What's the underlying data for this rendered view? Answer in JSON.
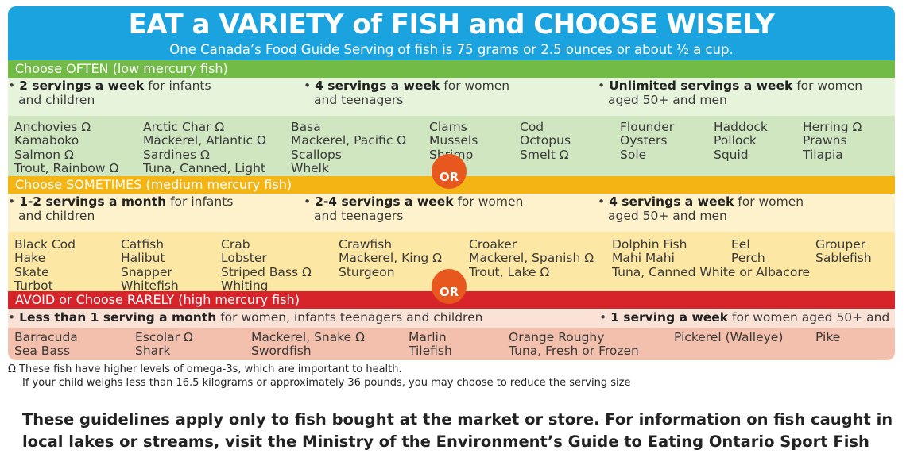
{
  "title": "EAT a VARIETY of FISH and CHOOSE WISELY",
  "subtitle": "One Canada’s Food Guide Serving of fish is 75 grams or 2.5 ounces or about ½ a cup.",
  "often": {
    "band": "Choose OFTEN  (low mercury fish)",
    "s1_b": "2 servings a week",
    "s1_r": " for infants",
    "s1_l2": "and children",
    "s2_b": "4 servings a week",
    "s2_r": " for women",
    "s2_l2": "and teenagers",
    "s3_b": "Unlimited servings a week",
    "s3_r": " for women",
    "s3_l2": "aged 50+ and men",
    "cols": [
      [
        "Anchovies Ω",
        "Kamaboko",
        "Salmon Ω",
        "Trout, Rainbow Ω"
      ],
      [
        "Arctic Char Ω",
        "Mackerel, Atlantic Ω",
        "Sardines Ω",
        "Tuna, Canned, Light"
      ],
      [
        "Basa",
        "Mackerel, Pacific Ω",
        "Scallops",
        "Whelk"
      ],
      [
        "Clams",
        "Mussels",
        "Shrimp"
      ],
      [
        "Cod",
        "Octopus",
        "Smelt Ω"
      ],
      [
        "Flounder",
        "Oysters",
        "Sole"
      ],
      [
        "Haddock",
        "Pollock",
        "Squid"
      ],
      [
        "Herring Ω",
        "Prawns",
        "Tilapia"
      ]
    ]
  },
  "or_label": "OR",
  "sometimes": {
    "band": "Choose SOMETIMES (medium mercury fish)",
    "s1_b": "1-2 servings a month",
    "s1_r": " for infants",
    "s1_l2": "and children",
    "s2_b": "2-4 servings a week",
    "s2_r": " for women",
    "s2_l2": "and teenagers",
    "s3_b": "4 servings a week",
    "s3_r": " for women",
    "s3_l2": "aged 50+ and men",
    "cols": [
      [
        "Black Cod",
        "Hake",
        "Skate",
        "Turbot"
      ],
      [
        "Catfish",
        "Halibut",
        "Snapper",
        "Whitefish"
      ],
      [
        "Crab",
        "Lobster",
        "Striped Bass Ω",
        "Whiting"
      ],
      [
        "Crawfish",
        "Mackerel, King Ω",
        "Sturgeon"
      ],
      [
        "Croaker",
        "Mackerel, Spanish Ω",
        "Trout, Lake Ω"
      ],
      [
        "Dolphin Fish",
        "Mahi Mahi",
        "Tuna, Canned White or Albacore"
      ],
      [
        "Eel",
        "Perch"
      ],
      [
        "Grouper",
        "Sablefish"
      ]
    ]
  },
  "avoid": {
    "band": "AVOID or Choose RARELY  (high mercury fish)",
    "s1_b": "Less than 1 serving a month",
    "s1_r": " for women, infants teenagers and children",
    "s2_b": "1 serving a week",
    "s2_r": " for women aged 50+ and men",
    "cols": [
      [
        "Barracuda",
        "Sea Bass"
      ],
      [
        "Escolar Ω",
        "Shark"
      ],
      [
        "Mackerel, Snake Ω",
        "Swordfish"
      ],
      [
        "Marlin",
        "Tilefish"
      ],
      [
        "Orange Roughy",
        "Tuna, Fresh or Frozen"
      ],
      [
        "Pickerel (Walleye)"
      ],
      [
        "Pike"
      ]
    ]
  },
  "footnote1": "Ω  These fish have higher levels of omega-3s, which are important to health.",
  "footnote2": "If your child weighs less than 16.5 kilograms or approximately 36 pounds, you may choose to reduce the serving size",
  "bottom_text": "These guidelines apply only to fish bought at the market or store. For information on fish caught in local lakes or streams, visit the Ministry of the Environment’s Guide to Eating Ontario Sport Fish",
  "colors": {
    "title_blue": "#1aa3de",
    "green": "#72bb47",
    "yellow": "#f3b414",
    "red": "#d7232a",
    "or_orange": "#e8571e"
  }
}
